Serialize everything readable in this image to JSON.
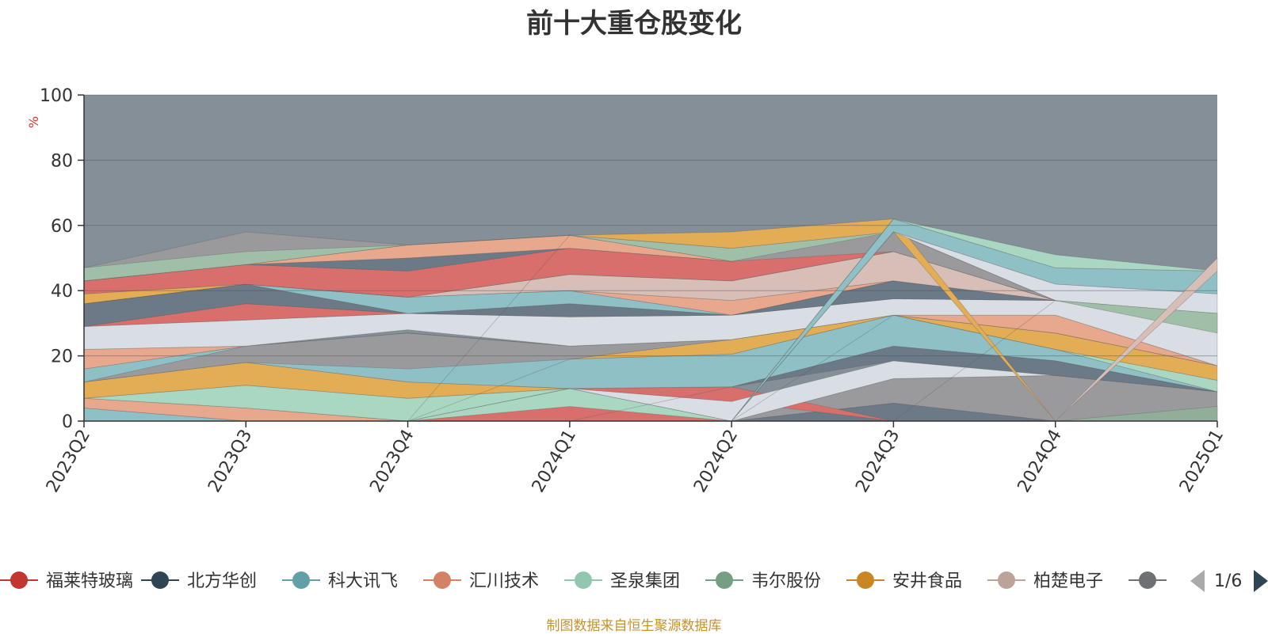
{
  "title": "前十大重仓股变化",
  "source_note": "制图数据来自恒生聚源数据库",
  "legend_page": "1/6",
  "chart_data": {
    "type": "area",
    "title": "前十大重仓股变化",
    "y_unit": "%",
    "ylim": [
      0,
      100
    ],
    "yticks": [
      0,
      20,
      40,
      60,
      80,
      100
    ],
    "grid": true,
    "background": "#848f97",
    "categories": [
      "2023Q2",
      "2023Q3",
      "2023Q4",
      "2024Q1",
      "2024Q2",
      "2024Q3",
      "2024Q4",
      "2025Q1"
    ],
    "legend_visible": [
      {
        "name": "福莱特玻璃",
        "color": "#c23531"
      },
      {
        "name": "北方华创",
        "color": "#2f4554"
      },
      {
        "name": "科大讯飞",
        "color": "#61a0a8"
      },
      {
        "name": "汇川技术",
        "color": "#d48265"
      },
      {
        "name": "圣泉集团",
        "color": "#91c7ae"
      },
      {
        "name": "韦尔股份",
        "color": "#749f83"
      },
      {
        "name": "安井食品",
        "color": "#ca8622"
      },
      {
        "name": "柏楚电子",
        "color": "#bda29a"
      },
      {
        "name": "",
        "color": "#6e7074"
      }
    ],
    "bands": [
      {
        "color": "#8ec0c6",
        "bottom": [
          0,
          0,
          0,
          0,
          0,
          0,
          0,
          0
        ],
        "top": [
          4,
          0,
          0,
          0,
          0,
          0,
          0,
          0
        ]
      },
      {
        "color": "#e8a88d",
        "bottom": [
          4,
          0,
          0,
          0,
          0,
          0,
          0,
          0
        ],
        "top": [
          7,
          4,
          0,
          0,
          0,
          0,
          0,
          0
        ]
      },
      {
        "color": "#a9d7c1",
        "bottom": [
          7,
          4,
          0,
          0,
          0,
          0,
          0,
          0
        ],
        "top": [
          7,
          11,
          7,
          10,
          0,
          0,
          0,
          0
        ]
      },
      {
        "color": "#d96f6c",
        "bottom": [
          0,
          0,
          0,
          0,
          0,
          0,
          0,
          0
        ],
        "top": [
          0,
          0,
          0,
          4.5,
          0,
          0,
          0,
          0
        ]
      },
      {
        "color": "#6b7a86",
        "bottom": [
          0,
          0,
          0,
          0,
          0,
          0,
          0,
          0
        ],
        "top": [
          0,
          0,
          0,
          0,
          0,
          5.5,
          0,
          0
        ]
      },
      {
        "color": "#9a9a9c",
        "bottom": [
          0,
          0,
          0,
          0,
          0,
          5.5,
          0,
          0
        ],
        "top": [
          0,
          0,
          0,
          0,
          0,
          13,
          14,
          9
        ]
      },
      {
        "color": "#93ae98",
        "bottom": [
          0,
          0,
          0,
          0,
          0,
          0,
          0,
          0
        ],
        "top": [
          0,
          0,
          0,
          0,
          0,
          0,
          0,
          4.5
        ]
      },
      {
        "color": "#e2ad55",
        "bottom": [
          7,
          11,
          7,
          10,
          0,
          0,
          0,
          0
        ],
        "top": [
          12,
          18,
          12,
          10,
          0,
          0,
          0,
          0
        ]
      },
      {
        "color": "#d96f6c",
        "bottom": [
          0,
          0,
          0,
          10,
          6,
          0,
          0,
          0
        ],
        "top": [
          0,
          0,
          0,
          10,
          10.5,
          0,
          0,
          0
        ]
      },
      {
        "color": "#d9dde4",
        "bottom": [
          0,
          0,
          0,
          10,
          0,
          13,
          14,
          9
        ],
        "top": [
          0,
          0,
          0,
          10,
          6,
          18.5,
          14,
          9
        ]
      },
      {
        "color": "#6b7a86",
        "bottom": [
          0,
          0,
          0,
          0,
          10.5,
          18.5,
          14,
          9
        ],
        "top": [
          0,
          0,
          0,
          0,
          10.5,
          23,
          18.5,
          9
        ]
      },
      {
        "color": "#8ec0c6",
        "bottom": [
          12,
          18,
          12,
          10,
          10.5,
          23,
          18.5,
          9
        ],
        "top": [
          16,
          23,
          23,
          19,
          20.5,
          32.5,
          22,
          9
        ]
      },
      {
        "color": "#a9d7c1",
        "bottom": [
          0,
          0,
          0,
          0,
          0,
          32.5,
          22,
          9
        ],
        "top": [
          0,
          0,
          0,
          0,
          0,
          32.5,
          22,
          12.5
        ]
      },
      {
        "color": "#e2ad55",
        "bottom": [
          0,
          0,
          0,
          19,
          20.5,
          32.5,
          22,
          12.5
        ],
        "top": [
          0,
          0,
          0,
          19,
          25,
          32.5,
          27,
          17
        ]
      },
      {
        "color": "#9a9a9c",
        "bottom": [
          12,
          18,
          16,
          19,
          25,
          32.5,
          27,
          17
        ],
        "top": [
          12,
          23,
          27,
          23,
          25,
          32.5,
          27,
          17
        ]
      },
      {
        "color": "#e8a88d",
        "bottom": [
          16,
          23,
          27,
          23,
          25,
          32.5,
          27,
          17
        ],
        "top": [
          22,
          23,
          27,
          23,
          25,
          32.5,
          32.5,
          17
        ]
      },
      {
        "color": "#d9dde4",
        "bottom": [
          22,
          23,
          28,
          23,
          25,
          32.5,
          32.5,
          17
        ],
        "top": [
          29,
          31,
          33,
          32,
          32.5,
          37.5,
          37,
          33
        ]
      },
      {
        "color": "#d96f6c",
        "bottom": [
          29,
          31,
          33,
          32,
          32.5,
          37.5,
          37,
          33
        ],
        "top": [
          29,
          36,
          33,
          32,
          32.5,
          37.5,
          37,
          33
        ]
      },
      {
        "color": "#6b7a86",
        "bottom": [
          29,
          36,
          33,
          32,
          32.5,
          37.5,
          37,
          33
        ],
        "top": [
          36,
          42,
          33,
          36,
          32.5,
          43,
          37,
          33
        ]
      },
      {
        "color": "#8ec0c6",
        "bottom": [
          36,
          42,
          33,
          36,
          32.5,
          43,
          37,
          33
        ],
        "top": [
          36,
          42,
          38,
          40,
          32.5,
          43,
          37,
          33
        ]
      },
      {
        "color": "#e8a88d",
        "bottom": [
          36,
          42,
          38,
          40,
          32.5,
          43,
          37,
          33
        ],
        "top": [
          36,
          42,
          38,
          40,
          37,
          43,
          37,
          33
        ]
      },
      {
        "color": "#d7bfb7",
        "bottom": [
          36,
          42,
          38,
          40,
          37,
          43,
          37,
          33
        ],
        "top": [
          36,
          42,
          38,
          45,
          43,
          52,
          37,
          33
        ]
      },
      {
        "color": "#e2ad55",
        "bottom": [
          36,
          42,
          38,
          45,
          43,
          52,
          37,
          33
        ],
        "top": [
          39,
          42,
          38,
          45,
          43,
          52,
          37,
          33
        ]
      },
      {
        "color": "#d96f6c",
        "bottom": [
          39,
          42,
          38,
          45,
          43,
          52,
          37,
          33
        ],
        "top": [
          43,
          48,
          46,
          53,
          49,
          58,
          37,
          33
        ]
      },
      {
        "color": "#6b7a86",
        "bottom": [
          43,
          48,
          46,
          53,
          49,
          58,
          37,
          33
        ],
        "top": [
          43,
          48,
          50,
          53,
          49,
          58,
          37,
          33
        ]
      },
      {
        "color": "#e8a88d",
        "bottom": [
          43,
          48,
          50,
          53,
          49,
          58,
          37,
          33
        ],
        "top": [
          43,
          48,
          54,
          57,
          49,
          58,
          37,
          33
        ]
      },
      {
        "color": "#9a9a9c",
        "bottom": [
          43,
          48,
          54,
          57,
          49,
          52,
          37,
          33
        ],
        "top": [
          47,
          58,
          54,
          57,
          53,
          58,
          37,
          33
        ]
      },
      {
        "color": "#a0bfa8",
        "bottom": [
          43,
          48,
          54,
          57,
          49,
          58,
          37,
          33
        ],
        "top": [
          47,
          52,
          54,
          57,
          53,
          58,
          37,
          33
        ]
      },
      {
        "color": "#e2ad55",
        "bottom": [
          0,
          0,
          0,
          57,
          53,
          58,
          0,
          0
        ],
        "top": [
          0,
          0,
          0,
          57,
          58,
          62,
          0,
          0
        ]
      },
      {
        "color": "#8ec0c6",
        "bottom": [
          0,
          0,
          0,
          0,
          0,
          58,
          42,
          39
        ],
        "top": [
          0,
          0,
          0,
          0,
          0,
          62,
          47,
          46
        ]
      },
      {
        "color": "#a9d7c1",
        "bottom": [
          0,
          0,
          0,
          0,
          0,
          62,
          47,
          46
        ],
        "top": [
          0,
          0,
          0,
          0,
          0,
          62,
          51,
          46
        ]
      },
      {
        "color": "#d9dde4",
        "bottom": [
          0,
          0,
          0,
          0,
          0,
          58,
          37,
          33
        ],
        "top": [
          0,
          0,
          0,
          0,
          0,
          58,
          42,
          39
        ]
      },
      {
        "color": "#a0bfa8",
        "bottom": [
          0,
          0,
          0,
          0,
          0,
          0,
          37,
          27
        ],
        "top": [
          0,
          0,
          0,
          0,
          0,
          0,
          37,
          33
        ]
      },
      {
        "color": "#d7bfb7",
        "bottom": [
          0,
          0,
          0,
          0,
          0,
          0,
          0,
          46
        ],
        "top": [
          0,
          0,
          0,
          0,
          0,
          0,
          0,
          50
        ]
      }
    ]
  }
}
